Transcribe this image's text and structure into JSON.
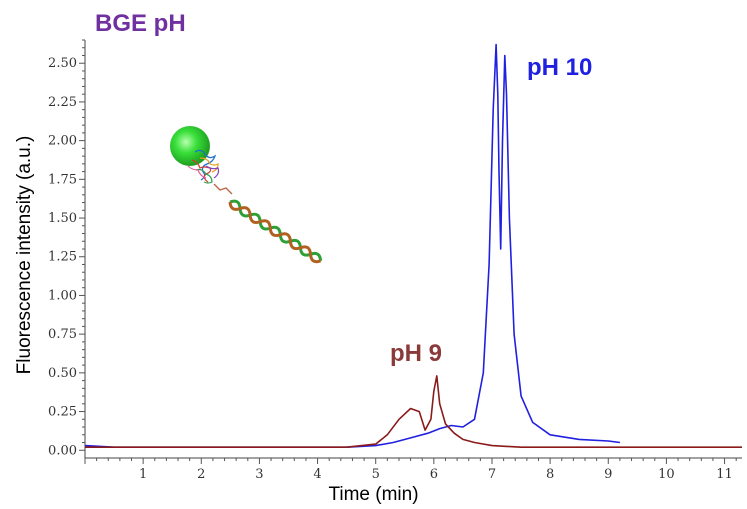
{
  "chart_data": {
    "type": "line",
    "title": "BGE pH",
    "xlabel": "Time (min)",
    "ylabel": "Fluorescence intensity (a.u.)",
    "xlim": [
      0,
      11.3
    ],
    "ylim": [
      -0.05,
      2.65
    ],
    "x_ticks": [
      1,
      2,
      3,
      4,
      5,
      6,
      7,
      8,
      9,
      10,
      11
    ],
    "y_ticks": [
      0.0,
      0.25,
      0.5,
      0.75,
      1.0,
      1.25,
      1.5,
      1.75,
      2.0,
      2.25,
      2.5
    ],
    "y_tick_labels": [
      "0.00",
      "0.25",
      "0.50",
      "0.75",
      "1.00",
      "1.25",
      "1.50",
      "1.75",
      "2.00",
      "2.25",
      "2.50"
    ],
    "grid": false,
    "series": [
      {
        "name": "pH 10",
        "color": "#2020e0",
        "x": [
          0.0,
          0.5,
          1.0,
          1.5,
          2.0,
          2.5,
          3.0,
          3.5,
          4.0,
          4.5,
          5.0,
          5.3,
          5.6,
          5.9,
          6.1,
          6.3,
          6.5,
          6.7,
          6.85,
          6.95,
          7.02,
          7.07,
          7.1,
          7.12,
          7.15,
          7.18,
          7.22,
          7.25,
          7.3,
          7.38,
          7.5,
          7.7,
          8.0,
          8.5,
          9.0,
          9.2
        ],
        "values": [
          0.03,
          0.02,
          0.02,
          0.02,
          0.02,
          0.02,
          0.02,
          0.02,
          0.02,
          0.02,
          0.03,
          0.05,
          0.08,
          0.11,
          0.14,
          0.16,
          0.15,
          0.2,
          0.5,
          1.2,
          2.2,
          2.62,
          2.3,
          1.8,
          1.3,
          2.0,
          2.55,
          2.3,
          1.5,
          0.75,
          0.35,
          0.18,
          0.1,
          0.07,
          0.06,
          0.05
        ]
      },
      {
        "name": "pH 9",
        "color": "#8b1a1a",
        "x": [
          0.0,
          0.5,
          1.0,
          1.5,
          2.0,
          2.5,
          3.0,
          3.5,
          4.0,
          4.5,
          5.0,
          5.2,
          5.4,
          5.6,
          5.75,
          5.85,
          5.95,
          6.0,
          6.05,
          6.1,
          6.2,
          6.35,
          6.5,
          6.7,
          7.0,
          7.5,
          8.0,
          9.0,
          10.0,
          11.0,
          11.3
        ],
        "values": [
          0.02,
          0.02,
          0.02,
          0.02,
          0.02,
          0.02,
          0.02,
          0.02,
          0.02,
          0.02,
          0.04,
          0.1,
          0.2,
          0.27,
          0.25,
          0.13,
          0.2,
          0.38,
          0.48,
          0.3,
          0.17,
          0.11,
          0.07,
          0.05,
          0.03,
          0.02,
          0.02,
          0.02,
          0.02,
          0.02,
          0.02
        ]
      }
    ],
    "annotations": [
      {
        "text": "pH 10",
        "color": "#2020e0"
      },
      {
        "text": "pH 9",
        "color": "#8b3a3a"
      }
    ],
    "title_color": "#7030a0"
  }
}
